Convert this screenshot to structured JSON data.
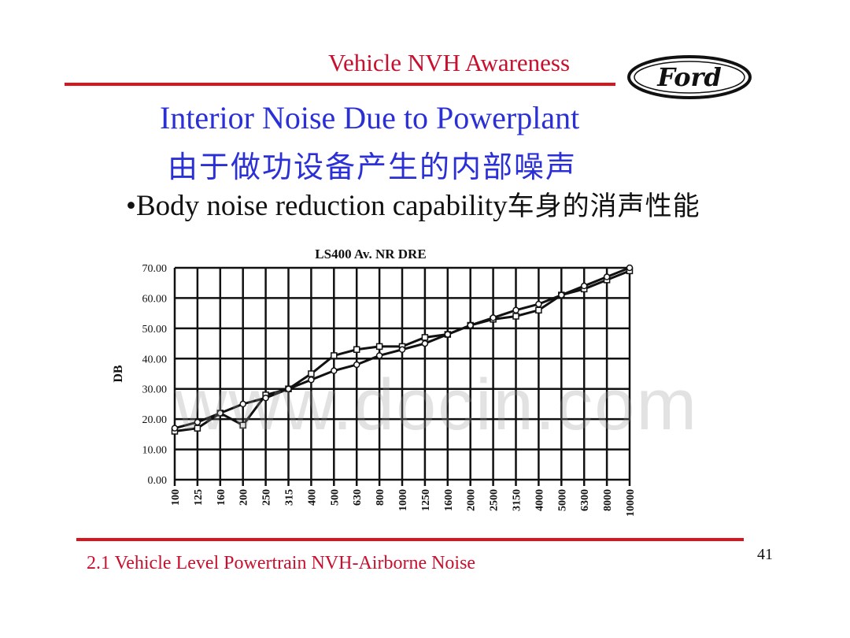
{
  "header": {
    "title": "Vehicle NVH Awareness",
    "logo_text": "Ford"
  },
  "slide": {
    "title": "Interior Noise Due to Powerplant",
    "subtitle_cn": "由于做功设备产生的内部噪声",
    "bullet_en": "•Body noise reduction capability",
    "bullet_cn": "车身的消声性能"
  },
  "watermark": "www.docin.com",
  "footer": {
    "text": "2.1 Vehicle Level Powertrain NVH-Airborne Noise",
    "page": "41"
  },
  "colors": {
    "red": "#c8102e",
    "blue": "#2a2fd6",
    "logo_navy": "#111111"
  },
  "chart_data": {
    "type": "line",
    "title": "LS400 Av. NR DRE",
    "ylabel": "DB",
    "xlabel": "",
    "ylim": [
      0,
      70
    ],
    "y_ticks": [
      "0.00",
      "10.00",
      "20.00",
      "30.00",
      "40.00",
      "50.00",
      "60.00",
      "70.00"
    ],
    "grid": true,
    "categories": [
      "100",
      "125",
      "160",
      "200",
      "250",
      "315",
      "400",
      "500",
      "630",
      "800",
      "1000",
      "1250",
      "1600",
      "2000",
      "2500",
      "3150",
      "4000",
      "5000",
      "6300",
      "8000",
      "10000"
    ],
    "series": [
      {
        "values": [
          16,
          17,
          22,
          18,
          28,
          30,
          35,
          41,
          43,
          44,
          44,
          47,
          48,
          51,
          53,
          54,
          56,
          61,
          63,
          66,
          69
        ]
      },
      {
        "values": [
          17,
          19,
          22,
          25,
          27,
          30,
          33,
          36,
          38,
          41,
          43,
          45,
          48,
          51,
          53.5,
          56,
          58,
          61,
          64,
          67,
          70
        ]
      }
    ]
  }
}
